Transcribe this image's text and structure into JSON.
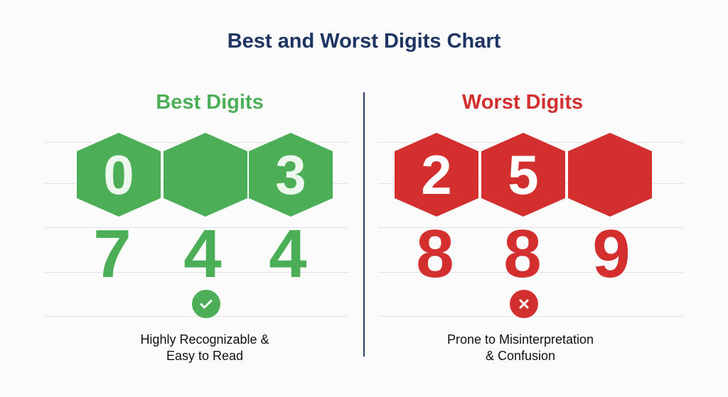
{
  "title": "Best and Worst Digits Chart",
  "colors": {
    "best": "#4caf58",
    "worst": "#d32f2f",
    "title": "#1e3563",
    "divider": "#2a3f66"
  },
  "best": {
    "heading": "Best Digits",
    "hex_digits": [
      "0",
      "",
      "3"
    ],
    "digits": [
      "7",
      "4",
      "4"
    ],
    "icon": "check-circle-icon",
    "caption_lines": [
      "Highly Recognizable &",
      "Easy to Read"
    ]
  },
  "worst": {
    "heading": "Worst Digits",
    "hex_digits": [
      "2",
      "5",
      ""
    ],
    "digits": [
      "8",
      "8",
      "9"
    ],
    "icon": "x-circle-icon",
    "caption_lines": [
      "Prone to Misinterpretation",
      "& Confusion"
    ]
  }
}
